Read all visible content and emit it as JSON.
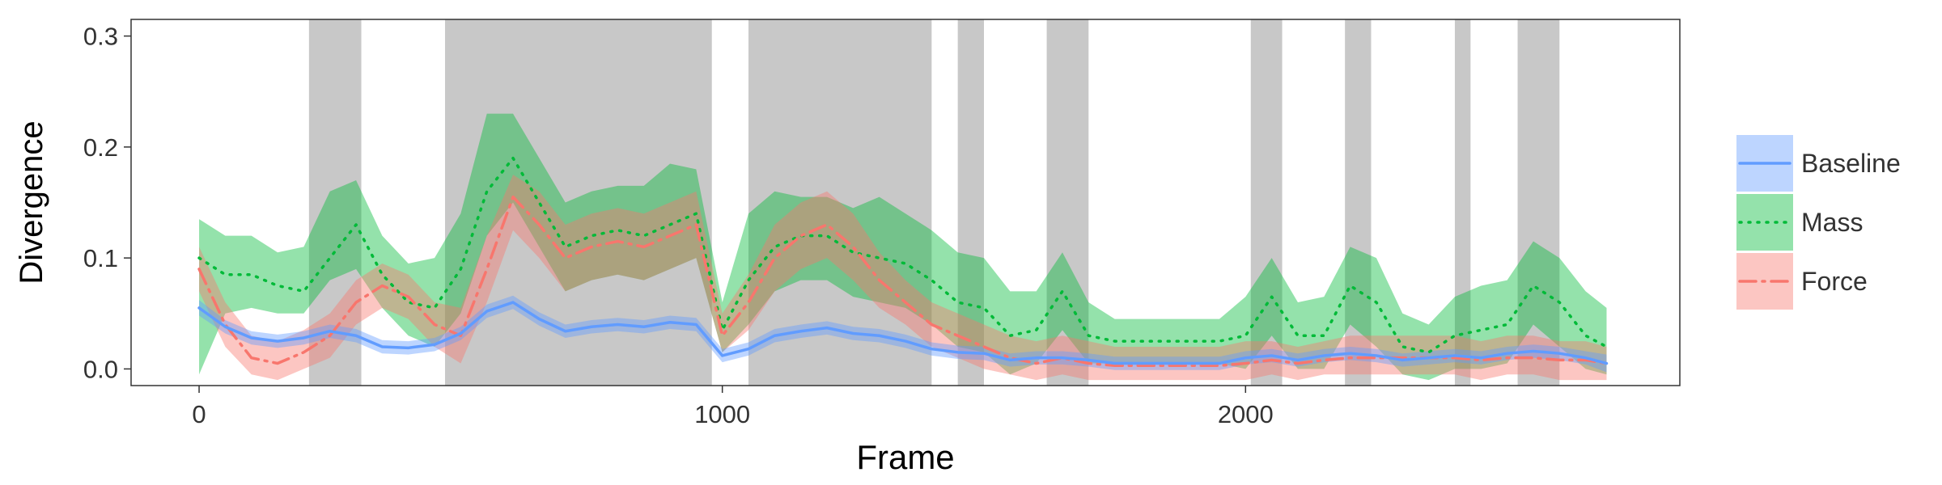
{
  "chart_data": {
    "type": "line",
    "xlabel": "Frame",
    "ylabel": "Divergence",
    "xlim": [
      -130,
      2830
    ],
    "ylim": [
      -0.015,
      0.315
    ],
    "x_ticks": [
      0,
      1000,
      2000
    ],
    "x_tick_labels": [
      "0",
      "1000",
      "2000"
    ],
    "y_ticks": [
      0.0,
      0.1,
      0.2,
      0.3
    ],
    "y_tick_labels": [
      "0.0",
      "0.1",
      "0.2",
      "0.3"
    ],
    "grid": false,
    "legend_position": "right",
    "shaded_frame_ranges": [
      [
        210,
        310
      ],
      [
        470,
        980
      ],
      [
        1050,
        1400
      ],
      [
        1450,
        1500
      ],
      [
        1620,
        1700
      ],
      [
        2010,
        2070
      ],
      [
        2190,
        2240
      ],
      [
        2400,
        2430
      ],
      [
        2520,
        2600
      ]
    ],
    "x": [
      0,
      50,
      100,
      150,
      200,
      250,
      300,
      350,
      400,
      450,
      500,
      550,
      600,
      650,
      700,
      750,
      800,
      850,
      900,
      950,
      1000,
      1050,
      1100,
      1150,
      1200,
      1250,
      1300,
      1350,
      1400,
      1450,
      1500,
      1550,
      1600,
      1650,
      1700,
      1750,
      1800,
      1850,
      1900,
      1950,
      2000,
      2050,
      2100,
      2150,
      2200,
      2250,
      2300,
      2350,
      2400,
      2450,
      2500,
      2550,
      2600,
      2650,
      2690
    ],
    "series": [
      {
        "name": "Baseline",
        "color": "#619CFF",
        "dash": "solid",
        "values": [
          0.055,
          0.038,
          0.028,
          0.025,
          0.028,
          0.034,
          0.03,
          0.02,
          0.019,
          0.022,
          0.032,
          0.052,
          0.06,
          0.045,
          0.034,
          0.038,
          0.04,
          0.038,
          0.042,
          0.04,
          0.012,
          0.018,
          0.03,
          0.034,
          0.037,
          0.032,
          0.03,
          0.025,
          0.018,
          0.015,
          0.014,
          0.008,
          0.01,
          0.01,
          0.008,
          0.005,
          0.005,
          0.005,
          0.005,
          0.005,
          0.01,
          0.012,
          0.008,
          0.012,
          0.014,
          0.012,
          0.008,
          0.01,
          0.012,
          0.01,
          0.014,
          0.016,
          0.014,
          0.01,
          0.005
        ],
        "lower": [
          0.048,
          0.032,
          0.022,
          0.019,
          0.022,
          0.028,
          0.024,
          0.014,
          0.013,
          0.016,
          0.026,
          0.046,
          0.054,
          0.039,
          0.028,
          0.032,
          0.034,
          0.032,
          0.036,
          0.034,
          0.006,
          0.012,
          0.024,
          0.028,
          0.031,
          0.026,
          0.024,
          0.019,
          0.012,
          0.009,
          0.008,
          0.002,
          0.004,
          0.004,
          0.002,
          -0.001,
          -0.001,
          -0.001,
          -0.001,
          -0.001,
          0.004,
          0.006,
          0.002,
          0.006,
          0.008,
          0.006,
          0.002,
          0.004,
          0.006,
          0.004,
          0.008,
          0.01,
          0.008,
          0.004,
          -0.003
        ],
        "upper": [
          0.062,
          0.044,
          0.034,
          0.031,
          0.034,
          0.04,
          0.036,
          0.026,
          0.025,
          0.028,
          0.038,
          0.058,
          0.066,
          0.051,
          0.04,
          0.044,
          0.046,
          0.044,
          0.048,
          0.046,
          0.018,
          0.024,
          0.036,
          0.04,
          0.043,
          0.038,
          0.036,
          0.031,
          0.024,
          0.021,
          0.02,
          0.014,
          0.016,
          0.016,
          0.014,
          0.011,
          0.011,
          0.011,
          0.011,
          0.011,
          0.016,
          0.018,
          0.014,
          0.018,
          0.02,
          0.018,
          0.014,
          0.016,
          0.018,
          0.016,
          0.02,
          0.022,
          0.02,
          0.016,
          0.013
        ]
      },
      {
        "name": "Mass",
        "color": "#00BA38",
        "dash": "dotted",
        "values": [
          0.1,
          0.085,
          0.085,
          0.075,
          0.07,
          0.1,
          0.13,
          0.085,
          0.06,
          0.055,
          0.09,
          0.16,
          0.19,
          0.15,
          0.11,
          0.12,
          0.125,
          0.12,
          0.13,
          0.14,
          0.035,
          0.08,
          0.11,
          0.12,
          0.12,
          0.105,
          0.1,
          0.095,
          0.08,
          0.06,
          0.055,
          0.03,
          0.035,
          0.07,
          0.03,
          0.025,
          0.025,
          0.025,
          0.025,
          0.025,
          0.03,
          0.065,
          0.03,
          0.03,
          0.075,
          0.06,
          0.02,
          0.015,
          0.03,
          0.035,
          0.04,
          0.075,
          0.06,
          0.03,
          0.02
        ],
        "lower": [
          -0.005,
          0.05,
          0.055,
          0.05,
          0.05,
          0.08,
          0.09,
          0.055,
          0.03,
          0.02,
          0.05,
          0.12,
          0.15,
          0.11,
          0.07,
          0.08,
          0.085,
          0.08,
          0.09,
          0.1,
          0.015,
          0.04,
          0.07,
          0.08,
          0.08,
          0.065,
          0.06,
          0.055,
          0.04,
          0.02,
          0.015,
          -0.005,
          0.005,
          0.035,
          0.005,
          0.005,
          0.005,
          0.005,
          0.005,
          0.005,
          0.0,
          0.03,
          0.0,
          0.0,
          0.04,
          0.02,
          -0.005,
          -0.01,
          0.0,
          0.0,
          0.005,
          0.04,
          0.02,
          0.0,
          -0.005
        ],
        "upper": [
          0.135,
          0.12,
          0.12,
          0.105,
          0.11,
          0.16,
          0.17,
          0.12,
          0.095,
          0.1,
          0.14,
          0.23,
          0.23,
          0.19,
          0.15,
          0.16,
          0.165,
          0.165,
          0.185,
          0.18,
          0.06,
          0.14,
          0.16,
          0.155,
          0.155,
          0.145,
          0.155,
          0.14,
          0.125,
          0.105,
          0.1,
          0.07,
          0.07,
          0.105,
          0.06,
          0.045,
          0.045,
          0.045,
          0.045,
          0.045,
          0.065,
          0.1,
          0.06,
          0.065,
          0.11,
          0.1,
          0.05,
          0.04,
          0.065,
          0.075,
          0.08,
          0.115,
          0.1,
          0.07,
          0.055
        ]
      },
      {
        "name": "Force",
        "color": "#F8766D",
        "dash": "dashdot",
        "values": [
          0.09,
          0.04,
          0.01,
          0.005,
          0.015,
          0.03,
          0.06,
          0.075,
          0.065,
          0.04,
          0.03,
          0.09,
          0.155,
          0.13,
          0.1,
          0.11,
          0.115,
          0.11,
          0.12,
          0.13,
          0.03,
          0.06,
          0.1,
          0.12,
          0.13,
          0.11,
          0.08,
          0.06,
          0.04,
          0.03,
          0.02,
          0.01,
          0.005,
          0.01,
          0.005,
          0.003,
          0.003,
          0.003,
          0.003,
          0.003,
          0.005,
          0.008,
          0.005,
          0.008,
          0.01,
          0.01,
          0.01,
          0.01,
          0.01,
          0.008,
          0.01,
          0.01,
          0.008,
          0.008,
          0.005
        ],
        "lower": [
          0.07,
          0.02,
          -0.005,
          -0.01,
          0.0,
          0.01,
          0.04,
          0.055,
          0.045,
          0.02,
          0.005,
          0.06,
          0.125,
          0.1,
          0.07,
          0.08,
          0.085,
          0.08,
          0.09,
          0.1,
          0.015,
          0.035,
          0.07,
          0.09,
          0.1,
          0.08,
          0.055,
          0.04,
          0.02,
          0.01,
          0.0,
          -0.005,
          -0.01,
          -0.005,
          -0.01,
          -0.01,
          -0.01,
          -0.01,
          -0.01,
          -0.01,
          -0.01,
          -0.005,
          -0.01,
          -0.005,
          -0.005,
          -0.005,
          -0.005,
          -0.005,
          -0.005,
          -0.01,
          -0.005,
          -0.005,
          -0.01,
          -0.01,
          -0.01
        ],
        "upper": [
          0.11,
          0.06,
          0.03,
          0.025,
          0.035,
          0.05,
          0.08,
          0.095,
          0.085,
          0.06,
          0.055,
          0.12,
          0.175,
          0.16,
          0.13,
          0.14,
          0.145,
          0.14,
          0.15,
          0.16,
          0.05,
          0.085,
          0.13,
          0.15,
          0.16,
          0.14,
          0.105,
          0.08,
          0.06,
          0.05,
          0.04,
          0.03,
          0.025,
          0.03,
          0.025,
          0.02,
          0.02,
          0.02,
          0.02,
          0.02,
          0.025,
          0.025,
          0.02,
          0.025,
          0.03,
          0.03,
          0.03,
          0.03,
          0.03,
          0.025,
          0.03,
          0.03,
          0.025,
          0.025,
          0.02
        ]
      }
    ]
  }
}
